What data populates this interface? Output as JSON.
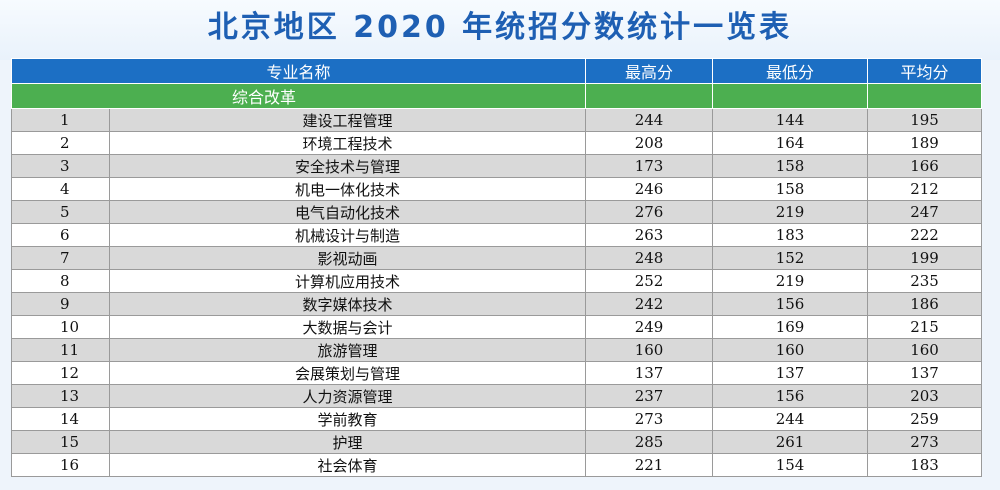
{
  "title": "北京地区 2020 年统招分数统计一览表",
  "colors": {
    "header": "#1c6fc4",
    "category": "#4caf50",
    "title": "#1e5fb3",
    "row_alt": "#d9d9d9"
  },
  "table": {
    "headers": {
      "major": "专业名称",
      "max": "最高分",
      "min": "最低分",
      "avg": "平均分"
    },
    "category": "综合改革",
    "rows": [
      {
        "idx": "1",
        "name": "建设工程管理",
        "max": "244",
        "min": "144",
        "avg": "195"
      },
      {
        "idx": "2",
        "name": "环境工程技术",
        "max": "208",
        "min": "164",
        "avg": "189"
      },
      {
        "idx": "3",
        "name": "安全技术与管理",
        "max": "173",
        "min": "158",
        "avg": "166"
      },
      {
        "idx": "4",
        "name": "机电一体化技术",
        "max": "246",
        "min": "158",
        "avg": "212"
      },
      {
        "idx": "5",
        "name": "电气自动化技术",
        "max": "276",
        "min": "219",
        "avg": "247"
      },
      {
        "idx": "6",
        "name": "机械设计与制造",
        "max": "263",
        "min": "183",
        "avg": "222"
      },
      {
        "idx": "7",
        "name": "影视动画",
        "max": "248",
        "min": "152",
        "avg": "199"
      },
      {
        "idx": "8",
        "name": "计算机应用技术",
        "max": "252",
        "min": "219",
        "avg": "235"
      },
      {
        "idx": "9",
        "name": "数字媒体技术",
        "max": "242",
        "min": "156",
        "avg": "186"
      },
      {
        "idx": "10",
        "name": "大数据与会计",
        "max": "249",
        "min": "169",
        "avg": "215"
      },
      {
        "idx": "11",
        "name": "旅游管理",
        "max": "160",
        "min": "160",
        "avg": "160"
      },
      {
        "idx": "12",
        "name": "会展策划与管理",
        "max": "137",
        "min": "137",
        "avg": "137"
      },
      {
        "idx": "13",
        "name": "人力资源管理",
        "max": "237",
        "min": "156",
        "avg": "203"
      },
      {
        "idx": "14",
        "name": "学前教育",
        "max": "273",
        "min": "244",
        "avg": "259"
      },
      {
        "idx": "15",
        "name": "护理",
        "max": "285",
        "min": "261",
        "avg": "273"
      },
      {
        "idx": "16",
        "name": "社会体育",
        "max": "221",
        "min": "154",
        "avg": "183"
      }
    ]
  }
}
